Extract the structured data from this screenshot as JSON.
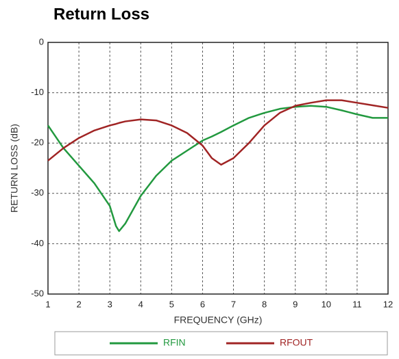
{
  "chart_data": {
    "type": "line",
    "title": "Return Loss",
    "x_label": "FREQUENCY (GHz)",
    "y_label": "RETURN LOSS (dB)",
    "x": [
      1,
      1.5,
      2,
      2.5,
      3,
      3.2,
      3.3,
      3.5,
      4,
      4.5,
      5,
      5.5,
      6,
      6.3,
      6.6,
      7,
      7.5,
      8,
      8.5,
      9,
      9.5,
      10,
      10.5,
      11,
      11.5,
      12
    ],
    "series": [
      {
        "name": "RFIN",
        "color": "#22993f",
        "values": [
          -16.5,
          -21,
          -24.5,
          -28,
          -32.5,
          -36.5,
          -37.5,
          -36,
          -30.5,
          -26.5,
          -23.5,
          -21.5,
          -19.5,
          -18.7,
          -17.8,
          -16.5,
          -15,
          -14,
          -13.2,
          -12.8,
          -12.6,
          -12.8,
          -13.5,
          -14.3,
          -15,
          -15
        ]
      },
      {
        "name": "RFOUT",
        "color": "#a02424",
        "values": [
          -23.5,
          -21,
          -19,
          -17.5,
          -16.5,
          -16.2,
          -16,
          -15.7,
          -15.3,
          -15.5,
          -16.5,
          -18,
          -20.5,
          -23,
          -24.3,
          -23,
          -20,
          -16.5,
          -14,
          -12.6,
          -12,
          -11.5,
          -11.5,
          -12,
          -12.5,
          -13
        ]
      }
    ],
    "xlim": [
      1,
      12
    ],
    "xticks": [
      1,
      2,
      3,
      4,
      5,
      6,
      7,
      8,
      9,
      10,
      11,
      12
    ],
    "ylim": [
      -50,
      0
    ],
    "yticks": [
      -50,
      -40,
      -30,
      -20,
      -10,
      0
    ],
    "grid": true,
    "legend": "bottom"
  }
}
